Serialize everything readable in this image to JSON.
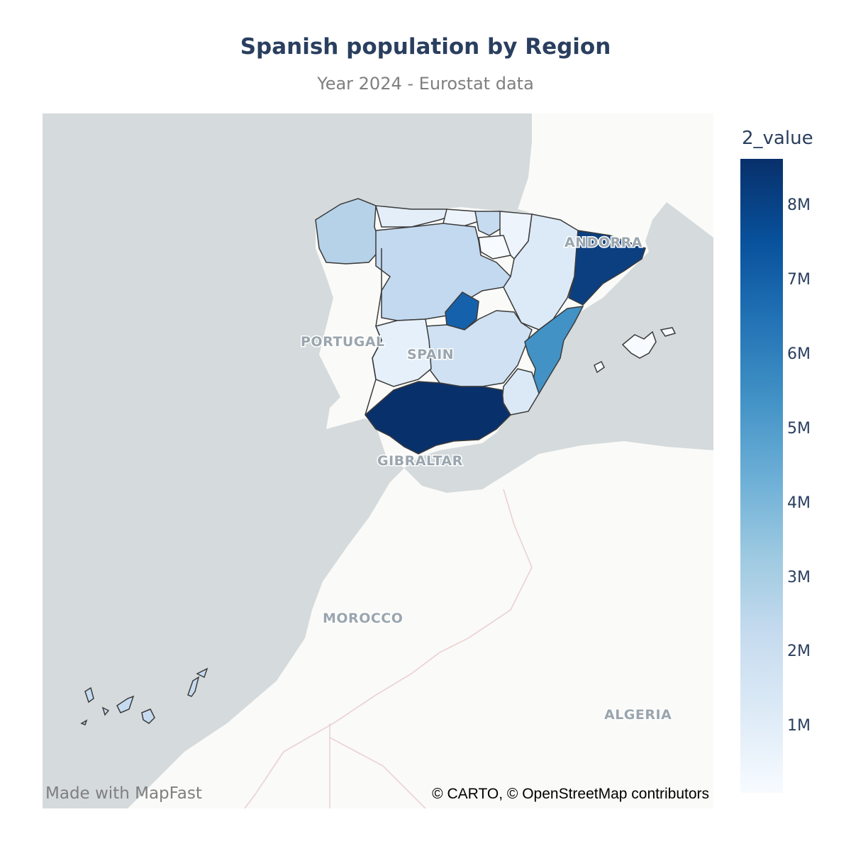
{
  "title": "Spanish population by Region",
  "subtitle": "Year 2024 - Eurostat data",
  "colorbar": {
    "title": "2_value",
    "ticks": [
      "8M",
      "7M",
      "6M",
      "5M",
      "4M",
      "3M",
      "2M",
      "1M"
    ]
  },
  "map_labels": {
    "andorra": "ANDORRA",
    "portugal": "PORTUGAL",
    "spain": "SPAIN",
    "gibraltar": "GIBRALTAR",
    "morocco": "MOROCCO",
    "algeria": "ALGERIA"
  },
  "watermark": "Made with MapFast",
  "attribution": "© CARTO, © OpenStreetMap contributors",
  "colors": {
    "ocean": "#d5dadc",
    "land": "#fafaf8",
    "region_border": "#3b3b3b",
    "scale_low": "#f7fbff",
    "scale_high": "#08306b"
  }
}
